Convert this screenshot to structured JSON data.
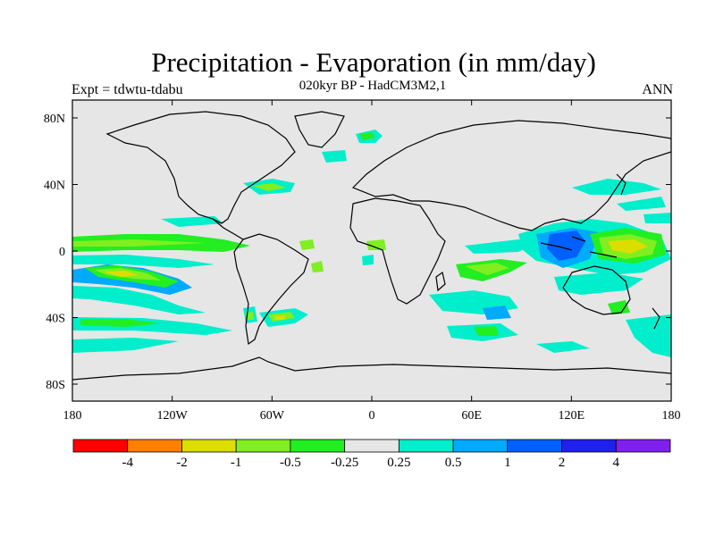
{
  "header": {
    "title": "Precipitation - Evaporation (in mm/day)",
    "subtitle": "020kyr BP - HadCM3M2,1",
    "left_label": "Expt = tdwtu-tdabu",
    "right_label": "ANN"
  },
  "axes": {
    "lat_ticks": [
      "80N",
      "40N",
      "0",
      "40S",
      "80S"
    ],
    "lon_ticks": [
      "180",
      "120W",
      "60W",
      "0",
      "60E",
      "120E",
      "180"
    ]
  },
  "colorbar": {
    "colors": [
      "#ff0000",
      "#ff8000",
      "#dddd00",
      "#80ee20",
      "#22ee22",
      "#e6e6e6",
      "#00eecc",
      "#00aaff",
      "#0060ff",
      "#2020ee",
      "#8020ee"
    ],
    "labels": [
      "-4",
      "-2",
      "-1",
      "-0.5",
      "-0.25",
      "0.25",
      "0.5",
      "1",
      "2",
      "4"
    ]
  }
}
